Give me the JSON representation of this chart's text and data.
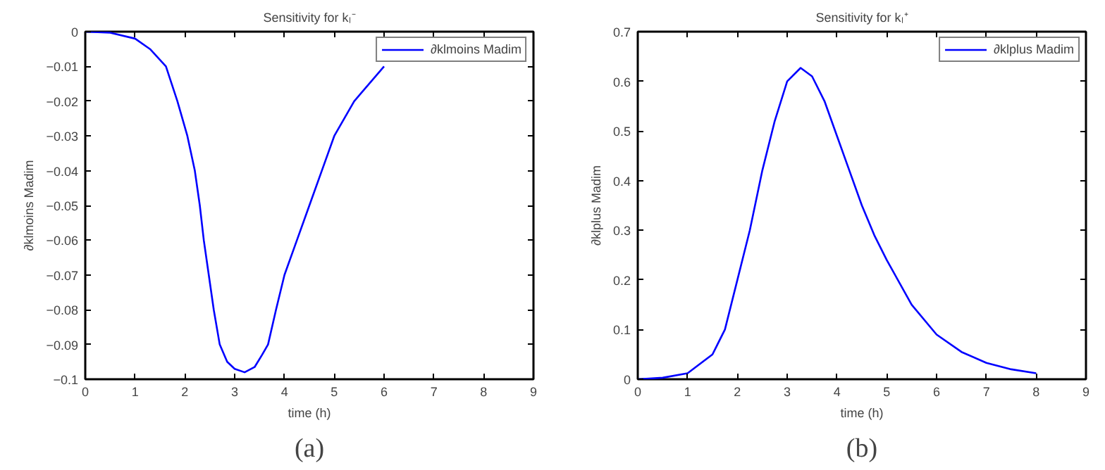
{
  "chart_data": [
    {
      "type": "line",
      "title": "Sensitivity for kₗ⁻",
      "xlabel": "time (h)",
      "ylabel": "∂klmoins Madim",
      "annotations": [
        "(a)"
      ],
      "x": [
        0,
        0.5,
        1,
        1.3,
        1.62,
        1.85,
        2.05,
        2.2,
        2.3,
        2.38,
        2.48,
        2.58,
        2.7,
        2.85,
        3.0,
        3.2,
        3.4,
        3.55,
        3.67,
        3.83,
        4.0,
        4.25,
        4.5,
        4.75,
        5.0,
        5.4,
        6.0
      ],
      "series": [
        {
          "name": "∂klmoins Madim",
          "color": "#0000ff",
          "values": [
            0,
            -0.0003,
            -0.002,
            -0.005,
            -0.01,
            -0.02,
            -0.03,
            -0.04,
            -0.05,
            -0.06,
            -0.07,
            -0.08,
            -0.09,
            -0.095,
            -0.097,
            -0.098,
            -0.0965,
            -0.093,
            -0.09,
            -0.08,
            -0.07,
            -0.06,
            -0.05,
            -0.04,
            -0.03,
            -0.02,
            -0.01
          ]
        }
      ],
      "xlim": [
        0,
        9
      ],
      "ylim": [
        -0.1,
        0
      ],
      "xticks": [
        0,
        1,
        2,
        3,
        4,
        5,
        6,
        7,
        8,
        9
      ],
      "yticks": [
        {
          "value": -0.1,
          "label": "−0.1"
        },
        {
          "value": -0.09,
          "label": "−0.09"
        },
        {
          "value": -0.08,
          "label": "−0.08"
        },
        {
          "value": -0.07,
          "label": "−0.07"
        },
        {
          "value": -0.06,
          "label": "−0.06"
        },
        {
          "value": -0.05,
          "label": "−0.05"
        },
        {
          "value": -0.04,
          "label": "−0.04"
        },
        {
          "value": -0.03,
          "label": "−0.03"
        },
        {
          "value": -0.02,
          "label": "−0.02"
        },
        {
          "value": -0.01,
          "label": "−0.01"
        },
        0
      ],
      "legend": "top right",
      "grid": false
    },
    {
      "type": "line",
      "title": "Sensitivity for kₗ⁺",
      "xlabel": "time (h)",
      "ylabel": "∂klplus Madim",
      "annotations": [
        "(b)"
      ],
      "x": [
        0,
        0.5,
        1,
        1.5,
        1.75,
        2,
        2.25,
        2.5,
        2.75,
        3,
        3.27,
        3.5,
        3.75,
        4,
        4.25,
        4.5,
        4.75,
        5,
        5.5,
        6,
        6.5,
        7,
        7.5,
        8
      ],
      "series": [
        {
          "name": "∂klplus Madim",
          "color": "#0000ff",
          "values": [
            0,
            0.003,
            0.012,
            0.05,
            0.1,
            0.2,
            0.3,
            0.42,
            0.52,
            0.6,
            0.627,
            0.61,
            0.56,
            0.49,
            0.42,
            0.35,
            0.29,
            0.24,
            0.15,
            0.09,
            0.055,
            0.033,
            0.02,
            0.012
          ]
        }
      ],
      "xlim": [
        0,
        9
      ],
      "ylim": [
        0,
        0.7
      ],
      "xticks": [
        0,
        1,
        2,
        3,
        4,
        5,
        6,
        7,
        8,
        9
      ],
      "yticks": [
        0,
        0.1,
        0.2,
        0.3,
        0.4,
        0.5,
        0.6,
        0.7
      ],
      "legend": "top right",
      "grid": false
    }
  ]
}
